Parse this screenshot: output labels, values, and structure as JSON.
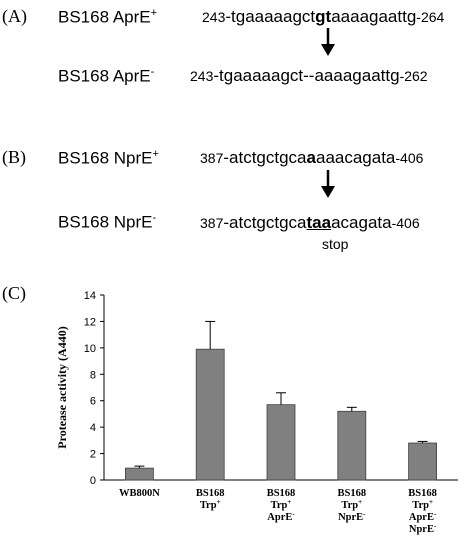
{
  "panelA": {
    "label": "(A)",
    "top": {
      "strain": "BS168 AprE",
      "sup": "+",
      "start": "243",
      "seq_pre": "-tgaaaaagct",
      "seq_bold": "gt",
      "seq_post": "aaaagaattg",
      "end": "-264"
    },
    "bottom": {
      "strain": "BS168 AprE",
      "sup": "-",
      "start": "243",
      "seq": "-tgaaaaagct--aaaagaattg",
      "end": "-262"
    }
  },
  "panelB": {
    "label": "(B)",
    "top": {
      "strain": "BS168 NprE",
      "sup": "+",
      "start": "387",
      "seq_pre": "-atctgctgca",
      "seq_bold": "a",
      "seq_post": "aaacagata",
      "end": "-406"
    },
    "bottom": {
      "strain": "BS168 NprE",
      "sup": "-",
      "start": "387",
      "seq_pre": "-atctgctgca",
      "seq_stop": "taa",
      "seq_post": "acagata",
      "end": "-406",
      "stop_label": "stop"
    }
  },
  "panelC": {
    "label": "(C)"
  },
  "chart_data": {
    "type": "bar",
    "ylabel": "Protease activity (A440)",
    "ylim": [
      0,
      14
    ],
    "yticks": [
      0,
      2,
      4,
      6,
      8,
      10,
      12,
      14
    ],
    "categories": [
      {
        "line1": "WB800N",
        "line2": "",
        "line2sup": "",
        "line3": "",
        "line3sup": "",
        "line4": "",
        "line4sup": ""
      },
      {
        "line1": "BS168",
        "line2": "Trp",
        "line2sup": "+",
        "line3": "",
        "line3sup": "",
        "line4": "",
        "line4sup": ""
      },
      {
        "line1": "BS168",
        "line2": "Trp",
        "line2sup": "+",
        "line3": "AprE",
        "line3sup": "-",
        "line4": "",
        "line4sup": ""
      },
      {
        "line1": "BS168",
        "line2": "Trp",
        "line2sup": "+",
        "line3": "NprE",
        "line3sup": "-",
        "line4": "",
        "line4sup": ""
      },
      {
        "line1": "BS168",
        "line2": "Trp",
        "line2sup": "+",
        "line3": "AprE",
        "line3sup": "-",
        "line4": "NprE",
        "line4sup": "-"
      }
    ],
    "values": [
      0.9,
      9.9,
      5.7,
      5.2,
      2.8
    ],
    "errors": [
      0.15,
      2.1,
      0.9,
      0.3,
      0.12
    ],
    "bar_color": "#808080",
    "grid": false
  }
}
